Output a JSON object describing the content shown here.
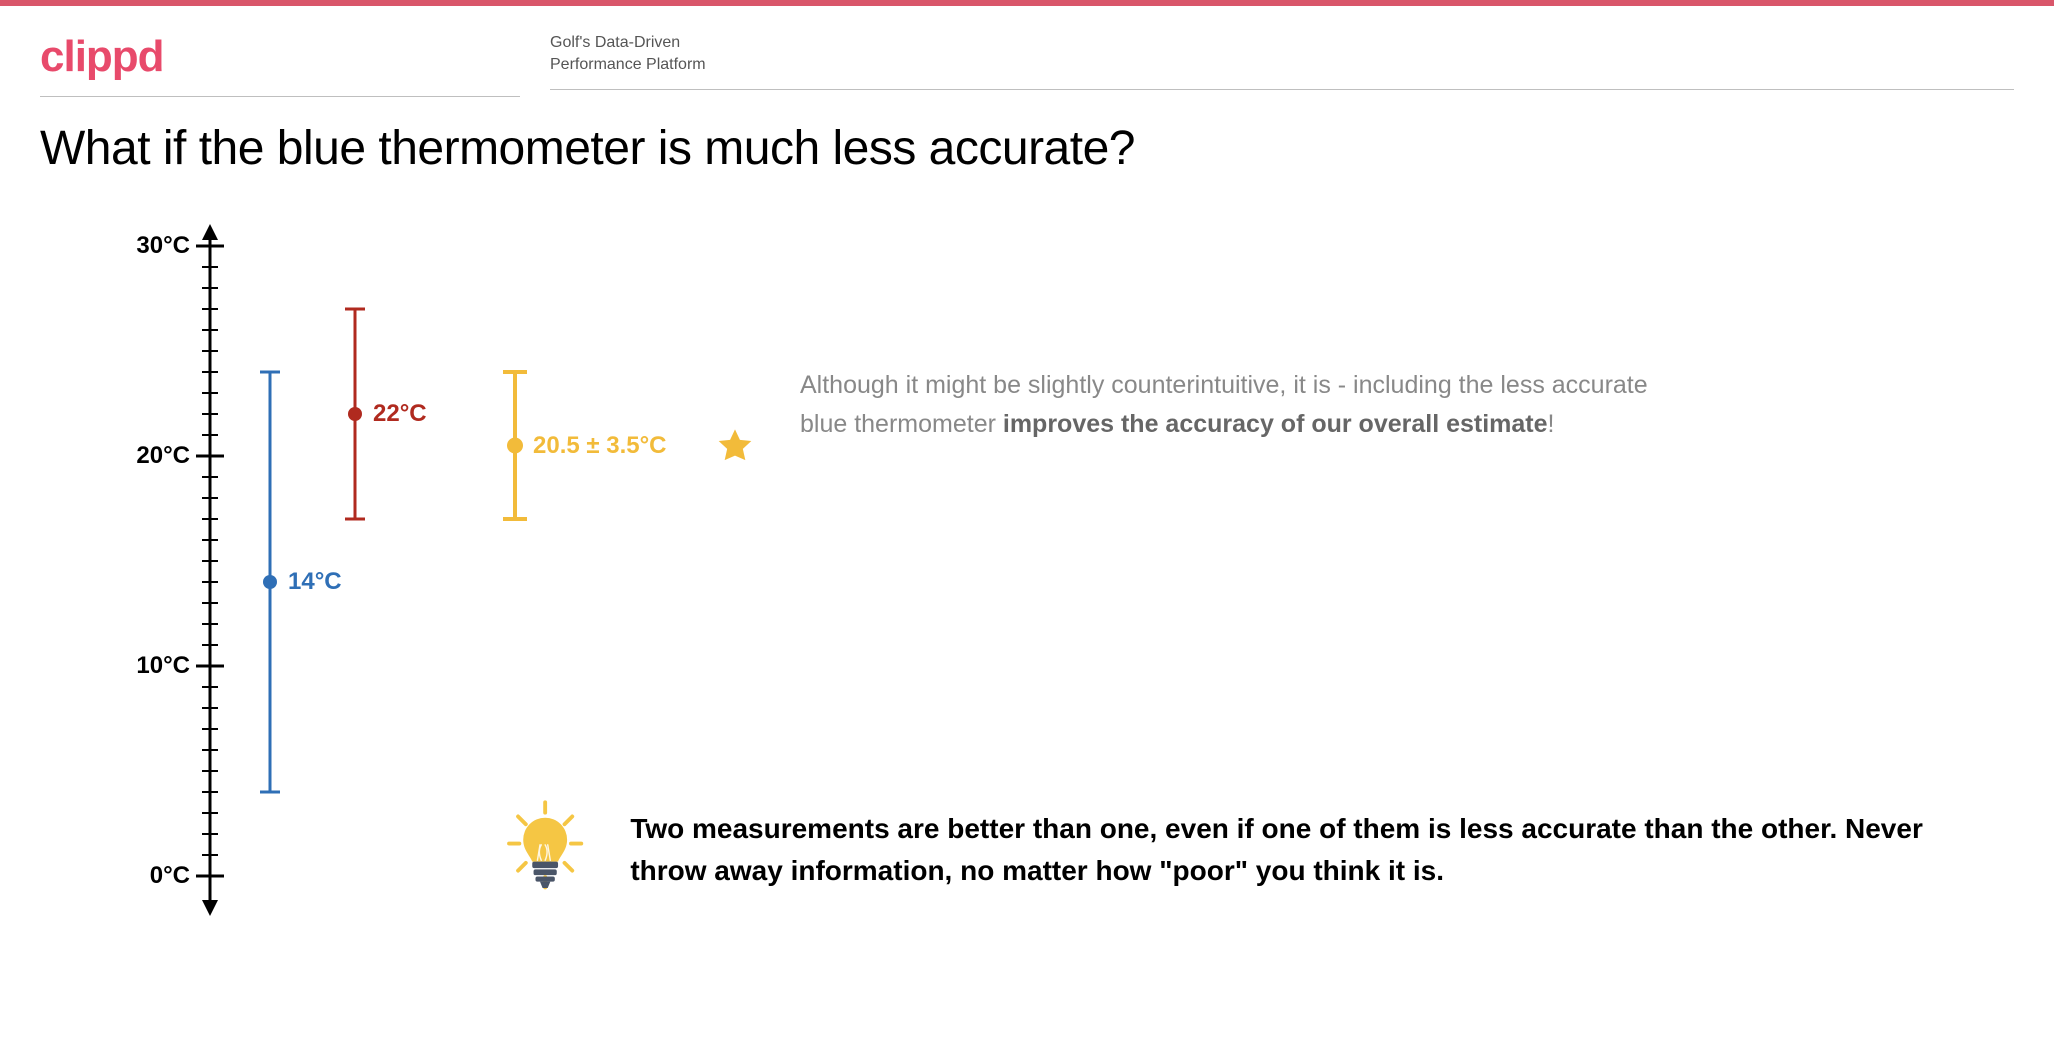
{
  "theme": {
    "accent": "#e84a6b",
    "topbar_color": "#d9566a",
    "rule_color": "#bfbfbf",
    "text_muted": "#888888",
    "text_body": "#666666"
  },
  "header": {
    "brand": "clippd",
    "tagline_line1": "Golf's Data-Driven",
    "tagline_line2": "Performance Platform"
  },
  "title": "What if the blue thermometer is much less accurate?",
  "chart": {
    "type": "errorbar",
    "axis": {
      "ymin": 0,
      "ymax": 30,
      "tick_step_major": 10,
      "tick_step_minor": 1,
      "labels": [
        "30°C",
        "20°C",
        "10°C",
        "0°C"
      ],
      "label_fontsize": 24,
      "axis_color": "#000000",
      "axis_width": 3
    },
    "series": [
      {
        "name": "blue",
        "x_offset": 60,
        "value": 14,
        "err_low": 4,
        "err_high": 24,
        "color": "#2f6fb6",
        "line_width": 3,
        "cap_width": 20,
        "dot_radius": 7,
        "label": "14°C",
        "label_color": "#2f6fb6"
      },
      {
        "name": "red",
        "x_offset": 145,
        "value": 22,
        "err_low": 17,
        "err_high": 27,
        "color": "#b02a1f",
        "line_width": 3,
        "cap_width": 20,
        "dot_radius": 7,
        "label": "22°C",
        "label_color": "#b02a1f"
      },
      {
        "name": "yellow",
        "x_offset": 305,
        "value": 20.5,
        "err_low": 17,
        "err_high": 24,
        "color": "#f2bb3a",
        "line_width": 4,
        "cap_width": 24,
        "dot_radius": 8,
        "label": "20.5 ± 3.5°C",
        "label_color": "#f2bb3a"
      }
    ],
    "star": {
      "color": "#f2bb3a",
      "size": 40
    }
  },
  "explain": {
    "pre": "Although it might be slightly counterintuitive, it is - including the less accurate blue thermometer ",
    "bold": "improves the accuracy of our overall estimate",
    "post": "!"
  },
  "takeaway": "Two measurements are better than one, even if one of them is less accurate than the other. Never throw away information, no matter how \"poor\" you think it is.",
  "bulb": {
    "glass": "#f5c644",
    "rays": "#f5c644",
    "base": "#4a5568"
  }
}
